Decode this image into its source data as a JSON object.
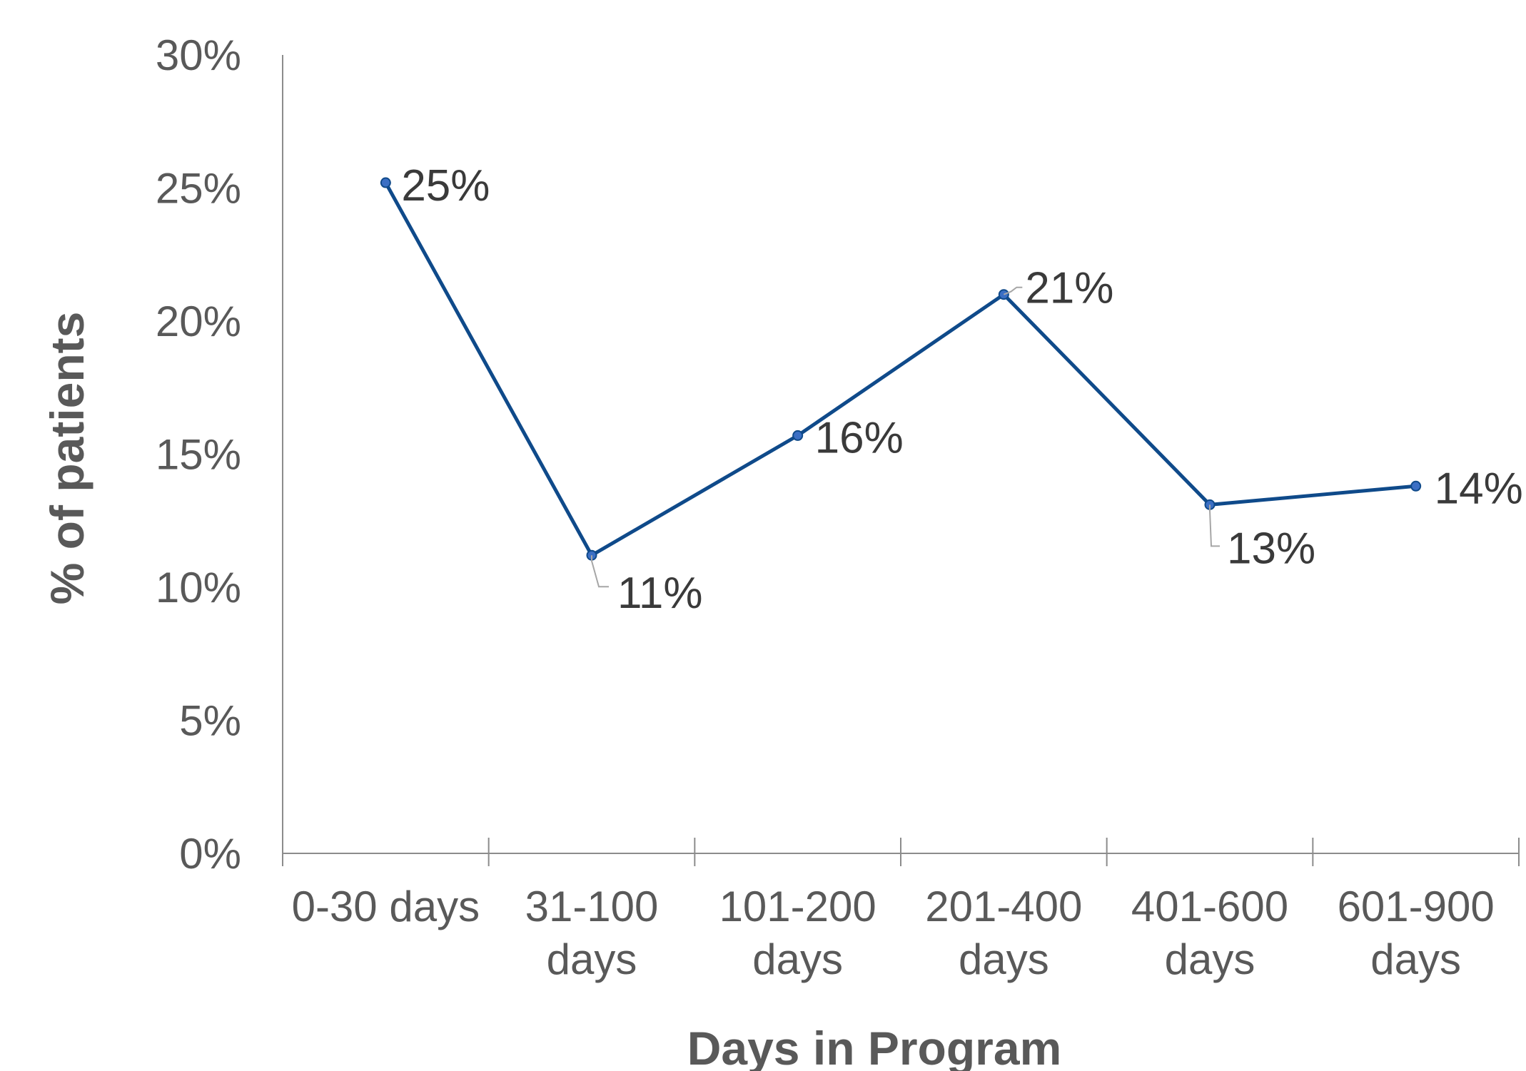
{
  "chart_data": {
    "type": "line",
    "title": "",
    "xlabel": "Days in Program",
    "ylabel": "% of patients",
    "categories": [
      [
        "0-30 days"
      ],
      [
        "31-100",
        "days"
      ],
      [
        "101-200",
        "days"
      ],
      [
        "201-400",
        "days"
      ],
      [
        "401-600",
        "days"
      ],
      [
        "601-900",
        "days"
      ]
    ],
    "series": [
      {
        "values": [
          25.2,
          11.2,
          15.7,
          21.0,
          13.1,
          13.8
        ],
        "labels": [
          "25%",
          "11%",
          "16%",
          "21%",
          "13%",
          "14%"
        ],
        "color": "#0F4A8A",
        "marker_color": "#3B6FC4"
      }
    ],
    "ylim": [
      0,
      30
    ],
    "yticks": [
      0,
      5,
      10,
      15,
      20,
      25,
      30
    ],
    "ytick_labels": [
      "0%",
      "5%",
      "10%",
      "15%",
      "20%",
      "25%",
      "30%"
    ],
    "grid": false,
    "legend": "none",
    "colors": {
      "axis": "#8c8c8c",
      "text": "#595959",
      "data_label": "#3a3a3a",
      "leader": "#a6a6a6"
    }
  }
}
